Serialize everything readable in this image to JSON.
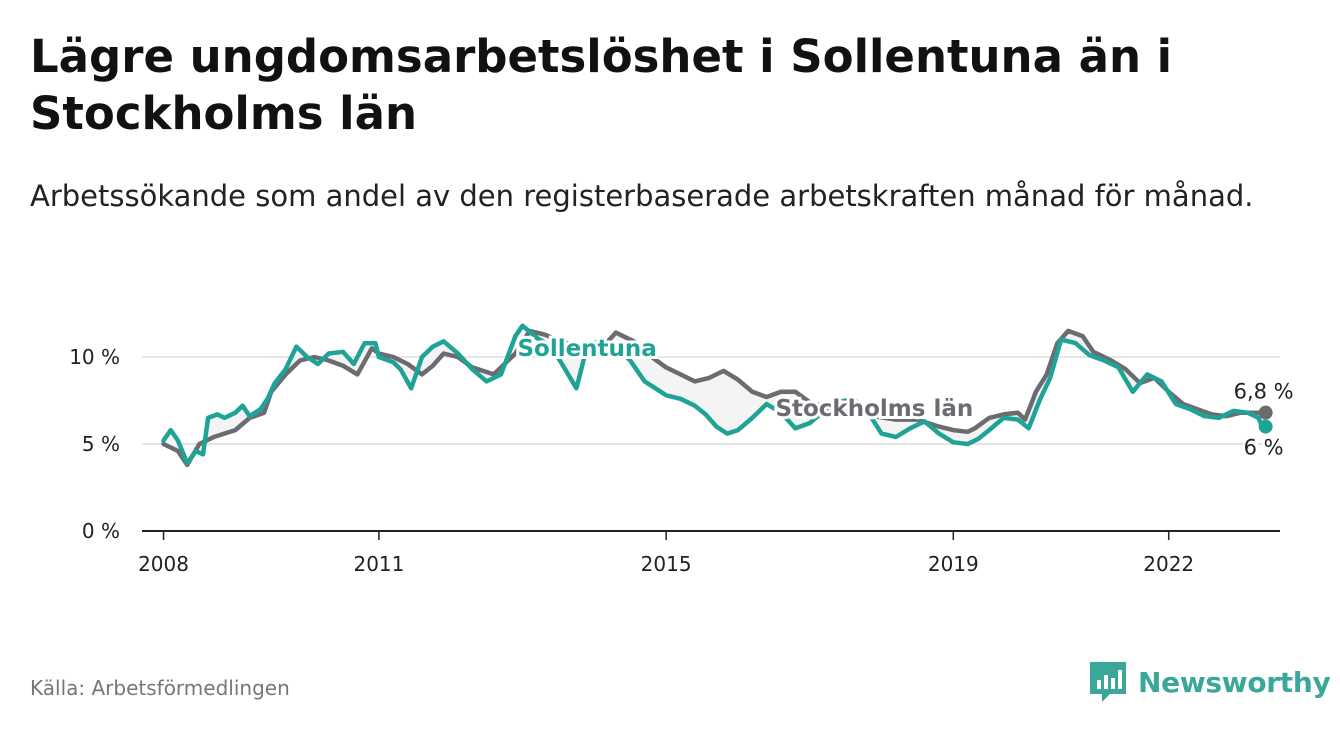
{
  "title": "Lägre ungdomsarbetslöshet i Sollentuna än i Stockholms län",
  "subtitle": "Arbetssökande som andel av den registerbaserade arbetskraften månad för månad.",
  "source": "Källa: Arbetsförmedlingen",
  "brand": {
    "name": "Newsworthy",
    "icon": "newsworthy-logo-icon"
  },
  "colors": {
    "sollentuna": "#20a397",
    "stockholm": "#6b6b71",
    "grid": "#dddddd",
    "axis": "#222222",
    "fill": "#f4f4f4"
  },
  "chart_data": {
    "type": "line",
    "title": "Lägre ungdomsarbetslöshet i Sollentuna än i Stockholms län",
    "xlabel": "",
    "ylabel": "",
    "xlim": [
      2007.7,
      2023.55
    ],
    "ylim": [
      0,
      10
    ],
    "yticks": [
      0,
      5,
      10
    ],
    "ytick_labels": [
      "0 %",
      "5 %",
      "10 %"
    ],
    "xticks": [
      2008,
      2011,
      2015,
      2019,
      2022
    ],
    "xtick_labels": [
      "2008",
      "2011",
      "2015",
      "2019",
      "2022"
    ],
    "grid": true,
    "series": [
      {
        "name": "Stockholms län",
        "end_label": "6,8 %",
        "points": [
          [
            2008.0,
            5.0
          ],
          [
            2008.2,
            4.6
          ],
          [
            2008.33,
            3.8
          ],
          [
            2008.5,
            5.0
          ],
          [
            2008.7,
            5.4
          ],
          [
            2009.0,
            5.8
          ],
          [
            2009.2,
            6.5
          ],
          [
            2009.4,
            6.8
          ],
          [
            2009.5,
            8.0
          ],
          [
            2009.7,
            9.0
          ],
          [
            2009.9,
            9.8
          ],
          [
            2010.1,
            10.0
          ],
          [
            2010.3,
            9.8
          ],
          [
            2010.5,
            9.5
          ],
          [
            2010.7,
            9.0
          ],
          [
            2010.9,
            10.5
          ],
          [
            2011.0,
            10.2
          ],
          [
            2011.2,
            10.0
          ],
          [
            2011.4,
            9.6
          ],
          [
            2011.6,
            9.0
          ],
          [
            2011.75,
            9.5
          ],
          [
            2011.9,
            10.2
          ],
          [
            2012.1,
            10.0
          ],
          [
            2012.3,
            9.4
          ],
          [
            2012.6,
            9.0
          ],
          [
            2012.9,
            10.2
          ],
          [
            2013.1,
            11.5
          ],
          [
            2013.3,
            11.3
          ],
          [
            2013.6,
            10.8
          ],
          [
            2013.9,
            10.6
          ],
          [
            2014.1,
            10.5
          ],
          [
            2014.3,
            11.4
          ],
          [
            2014.6,
            10.8
          ],
          [
            2014.8,
            10.0
          ],
          [
            2015.0,
            9.4
          ],
          [
            2015.2,
            9.0
          ],
          [
            2015.4,
            8.6
          ],
          [
            2015.6,
            8.8
          ],
          [
            2015.8,
            9.2
          ],
          [
            2016.0,
            8.7
          ],
          [
            2016.2,
            8.0
          ],
          [
            2016.4,
            7.7
          ],
          [
            2016.6,
            8.0
          ],
          [
            2016.8,
            8.0
          ],
          [
            2017.0,
            7.4
          ],
          [
            2017.3,
            7.0
          ],
          [
            2017.6,
            6.8
          ],
          [
            2017.9,
            6.6
          ],
          [
            2018.2,
            6.4
          ],
          [
            2018.5,
            6.4
          ],
          [
            2018.8,
            6.0
          ],
          [
            2019.0,
            5.8
          ],
          [
            2019.2,
            5.7
          ],
          [
            2019.3,
            5.9
          ],
          [
            2019.5,
            6.5
          ],
          [
            2019.7,
            6.7
          ],
          [
            2019.9,
            6.8
          ],
          [
            2020.0,
            6.4
          ],
          [
            2020.15,
            8.0
          ],
          [
            2020.3,
            9.0
          ],
          [
            2020.45,
            10.8
          ],
          [
            2020.6,
            11.5
          ],
          [
            2020.8,
            11.2
          ],
          [
            2020.95,
            10.3
          ],
          [
            2021.2,
            9.8
          ],
          [
            2021.4,
            9.3
          ],
          [
            2021.6,
            8.5
          ],
          [
            2021.8,
            8.8
          ],
          [
            2022.0,
            8.0
          ],
          [
            2022.2,
            7.3
          ],
          [
            2022.4,
            7.0
          ],
          [
            2022.6,
            6.7
          ],
          [
            2022.8,
            6.6
          ],
          [
            2023.0,
            6.8
          ],
          [
            2023.2,
            6.8
          ],
          [
            2023.35,
            6.8
          ]
        ]
      },
      {
        "name": "Sollentuna",
        "end_label": "6 %",
        "points": [
          [
            2008.0,
            5.2
          ],
          [
            2008.1,
            5.8
          ],
          [
            2008.2,
            5.2
          ],
          [
            2008.33,
            3.9
          ],
          [
            2008.45,
            4.6
          ],
          [
            2008.55,
            4.4
          ],
          [
            2008.62,
            6.5
          ],
          [
            2008.75,
            6.7
          ],
          [
            2008.85,
            6.5
          ],
          [
            2009.0,
            6.8
          ],
          [
            2009.1,
            7.2
          ],
          [
            2009.2,
            6.6
          ],
          [
            2009.35,
            7.0
          ],
          [
            2009.45,
            7.6
          ],
          [
            2009.55,
            8.5
          ],
          [
            2009.7,
            9.3
          ],
          [
            2009.85,
            10.6
          ],
          [
            2010.0,
            10.0
          ],
          [
            2010.15,
            9.6
          ],
          [
            2010.3,
            10.2
          ],
          [
            2010.5,
            10.3
          ],
          [
            2010.65,
            9.6
          ],
          [
            2010.8,
            10.8
          ],
          [
            2010.95,
            10.8
          ],
          [
            2011.0,
            10.0
          ],
          [
            2011.2,
            9.7
          ],
          [
            2011.3,
            9.3
          ],
          [
            2011.45,
            8.2
          ],
          [
            2011.6,
            10.0
          ],
          [
            2011.75,
            10.6
          ],
          [
            2011.9,
            10.9
          ],
          [
            2012.1,
            10.2
          ],
          [
            2012.3,
            9.3
          ],
          [
            2012.5,
            8.6
          ],
          [
            2012.7,
            9.0
          ],
          [
            2012.9,
            11.2
          ],
          [
            2013.0,
            11.8
          ],
          [
            2013.2,
            11.1
          ],
          [
            2013.4,
            10.6
          ],
          [
            2013.55,
            9.6
          ],
          [
            2013.75,
            8.2
          ],
          [
            2013.9,
            10.6
          ],
          [
            2014.1,
            11.0
          ],
          [
            2014.3,
            10.6
          ],
          [
            2014.5,
            9.8
          ],
          [
            2014.7,
            8.6
          ],
          [
            2014.85,
            8.2
          ],
          [
            2015.0,
            7.8
          ],
          [
            2015.2,
            7.6
          ],
          [
            2015.4,
            7.2
          ],
          [
            2015.55,
            6.7
          ],
          [
            2015.7,
            6.0
          ],
          [
            2015.85,
            5.6
          ],
          [
            2016.0,
            5.8
          ],
          [
            2016.2,
            6.5
          ],
          [
            2016.4,
            7.3
          ],
          [
            2016.6,
            6.8
          ],
          [
            2016.8,
            5.9
          ],
          [
            2017.0,
            6.2
          ],
          [
            2017.2,
            6.9
          ],
          [
            2017.4,
            7.4
          ],
          [
            2017.6,
            7.6
          ],
          [
            2017.8,
            6.9
          ],
          [
            2018.0,
            5.6
          ],
          [
            2018.2,
            5.4
          ],
          [
            2018.4,
            5.9
          ],
          [
            2018.6,
            6.3
          ],
          [
            2018.8,
            5.6
          ],
          [
            2019.0,
            5.1
          ],
          [
            2019.2,
            5.0
          ],
          [
            2019.35,
            5.3
          ],
          [
            2019.5,
            5.8
          ],
          [
            2019.7,
            6.5
          ],
          [
            2019.9,
            6.4
          ],
          [
            2020.05,
            5.9
          ],
          [
            2020.2,
            7.5
          ],
          [
            2020.35,
            8.8
          ],
          [
            2020.5,
            11.0
          ],
          [
            2020.7,
            10.8
          ],
          [
            2020.9,
            10.1
          ],
          [
            2021.1,
            9.8
          ],
          [
            2021.3,
            9.4
          ],
          [
            2021.5,
            8.0
          ],
          [
            2021.7,
            9.0
          ],
          [
            2021.9,
            8.6
          ],
          [
            2022.1,
            7.3
          ],
          [
            2022.3,
            7.0
          ],
          [
            2022.5,
            6.6
          ],
          [
            2022.7,
            6.5
          ],
          [
            2022.9,
            6.9
          ],
          [
            2023.1,
            6.8
          ],
          [
            2023.25,
            6.5
          ],
          [
            2023.3,
            6.0
          ],
          [
            2023.35,
            6.0
          ]
        ]
      }
    ],
    "inline_labels": [
      {
        "text": "Sollentuna",
        "series": "Sollentuna",
        "x": 2013.9,
        "y": 10.05
      },
      {
        "text": "Stockholms län",
        "series": "Stockholms län",
        "x": 2017.9,
        "y": 6.6
      }
    ]
  }
}
